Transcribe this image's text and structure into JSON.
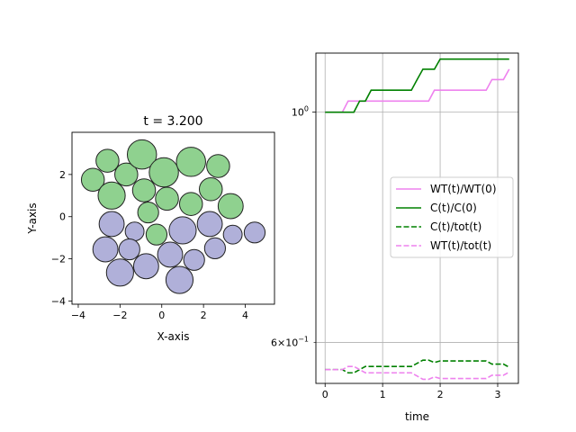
{
  "chart_data": [
    {
      "type": "scatter",
      "title": "t = 3.200",
      "xlabel": "X-axis",
      "ylabel": "Y-axis",
      "xlim": [
        -4.3,
        5.4
      ],
      "ylim": [
        -4.15,
        4.0
      ],
      "x_ticks": [
        -4,
        -2,
        0,
        2,
        4
      ],
      "y_ticks": [
        -4,
        -2,
        0,
        2
      ],
      "x_tick_labels": [
        "−4",
        "−2",
        "0",
        "2",
        "4"
      ],
      "y_tick_labels": [
        "−4",
        "−2",
        "0",
        "2"
      ],
      "colors": {
        "green": "#8fd18f",
        "purple": "#b0b0d9",
        "edge": "#222222"
      },
      "green_disks": [
        {
          "x": -2.6,
          "y": 2.65,
          "r": 0.55
        },
        {
          "x": -1.7,
          "y": 2.0,
          "r": 0.55
        },
        {
          "x": -0.95,
          "y": 2.95,
          "r": 0.7
        },
        {
          "x": 0.1,
          "y": 2.1,
          "r": 0.7
        },
        {
          "x": 1.4,
          "y": 2.6,
          "r": 0.7
        },
        {
          "x": 2.7,
          "y": 2.4,
          "r": 0.55
        },
        {
          "x": -3.3,
          "y": 1.75,
          "r": 0.55
        },
        {
          "x": -2.4,
          "y": 1.0,
          "r": 0.65
        },
        {
          "x": -0.85,
          "y": 1.25,
          "r": 0.55
        },
        {
          "x": 0.25,
          "y": 0.85,
          "r": 0.55
        },
        {
          "x": 1.4,
          "y": 0.6,
          "r": 0.55
        },
        {
          "x": 2.35,
          "y": 1.3,
          "r": 0.55
        },
        {
          "x": 3.3,
          "y": 0.5,
          "r": 0.6
        },
        {
          "x": -0.65,
          "y": 0.2,
          "r": 0.5
        },
        {
          "x": -0.25,
          "y": -0.85,
          "r": 0.5
        }
      ],
      "purple_disks": [
        {
          "x": -2.4,
          "y": -0.35,
          "r": 0.6
        },
        {
          "x": -1.3,
          "y": -0.7,
          "r": 0.45
        },
        {
          "x": 1.0,
          "y": -0.65,
          "r": 0.65
        },
        {
          "x": 2.3,
          "y": -0.35,
          "r": 0.6
        },
        {
          "x": 3.4,
          "y": -0.85,
          "r": 0.45
        },
        {
          "x": 4.45,
          "y": -0.75,
          "r": 0.5
        },
        {
          "x": -2.7,
          "y": -1.55,
          "r": 0.6
        },
        {
          "x": -1.55,
          "y": -1.55,
          "r": 0.5
        },
        {
          "x": 0.4,
          "y": -1.8,
          "r": 0.6
        },
        {
          "x": 1.55,
          "y": -2.05,
          "r": 0.5
        },
        {
          "x": 2.55,
          "y": -1.5,
          "r": 0.5
        },
        {
          "x": -2.0,
          "y": -2.65,
          "r": 0.65
        },
        {
          "x": -0.75,
          "y": -2.35,
          "r": 0.6
        },
        {
          "x": 0.85,
          "y": -3.0,
          "r": 0.65
        }
      ]
    },
    {
      "type": "line",
      "xlabel": "time",
      "ylabel": "",
      "y_scale": "log",
      "xlim": [
        -0.16,
        3.36
      ],
      "ylim": [
        0.548,
        1.14
      ],
      "grid": true,
      "legend_position": "center-right",
      "x_ticks": [
        0,
        1,
        2,
        3
      ],
      "x_tick_labels": [
        "0",
        "1",
        "2",
        "3"
      ],
      "y_major_tick": {
        "value": 1.0,
        "label": "10^0"
      },
      "y_minor_tick": {
        "value": 0.6,
        "label": "6×10^−1"
      },
      "series": [
        {
          "name": "WT(t)/WT(0)",
          "color": "#ee82ee",
          "dash": "solid",
          "x": [
            0,
            0.3,
            0.4,
            0.6,
            0.7,
            0.8,
            1.5,
            1.8,
            1.9,
            2.7,
            2.8,
            2.9,
            3.1,
            3.2
          ],
          "y": [
            1.0,
            1.0,
            1.025,
            1.025,
            1.025,
            1.025,
            1.025,
            1.025,
            1.05,
            1.05,
            1.05,
            1.075,
            1.075,
            1.1
          ]
        },
        {
          "name": "C(t)/C(0)",
          "color": "#008000",
          "dash": "solid",
          "x": [
            0,
            0.5,
            0.6,
            0.7,
            0.8,
            1.5,
            1.6,
            1.7,
            1.9,
            2.0,
            3.2
          ],
          "y": [
            1.0,
            1.0,
            1.025,
            1.025,
            1.05,
            1.05,
            1.075,
            1.1,
            1.1,
            1.125,
            1.125
          ]
        },
        {
          "name": "C(t)/tot(t)",
          "color": "#008000",
          "dash": "dashed",
          "x": [
            0,
            0.3,
            0.4,
            0.5,
            0.6,
            0.7,
            0.8,
            1.5,
            1.6,
            1.7,
            1.8,
            1.9,
            2.0,
            2.7,
            2.8,
            2.9,
            3.1,
            3.2
          ],
          "y": [
            0.565,
            0.565,
            0.561,
            0.561,
            0.565,
            0.569,
            0.569,
            0.569,
            0.573,
            0.577,
            0.577,
            0.574,
            0.576,
            0.576,
            0.576,
            0.572,
            0.572,
            0.568
          ]
        },
        {
          "name": "WT(t)/tot(t)",
          "color": "#ee82ee",
          "dash": "dashed",
          "x": [
            0,
            0.3,
            0.4,
            0.5,
            0.6,
            0.7,
            0.8,
            1.5,
            1.6,
            1.7,
            1.8,
            1.9,
            2.0,
            2.7,
            2.8,
            2.9,
            3.1,
            3.2
          ],
          "y": [
            0.565,
            0.565,
            0.569,
            0.569,
            0.565,
            0.561,
            0.561,
            0.561,
            0.557,
            0.553,
            0.553,
            0.556,
            0.554,
            0.554,
            0.554,
            0.558,
            0.558,
            0.562
          ]
        }
      ]
    }
  ]
}
